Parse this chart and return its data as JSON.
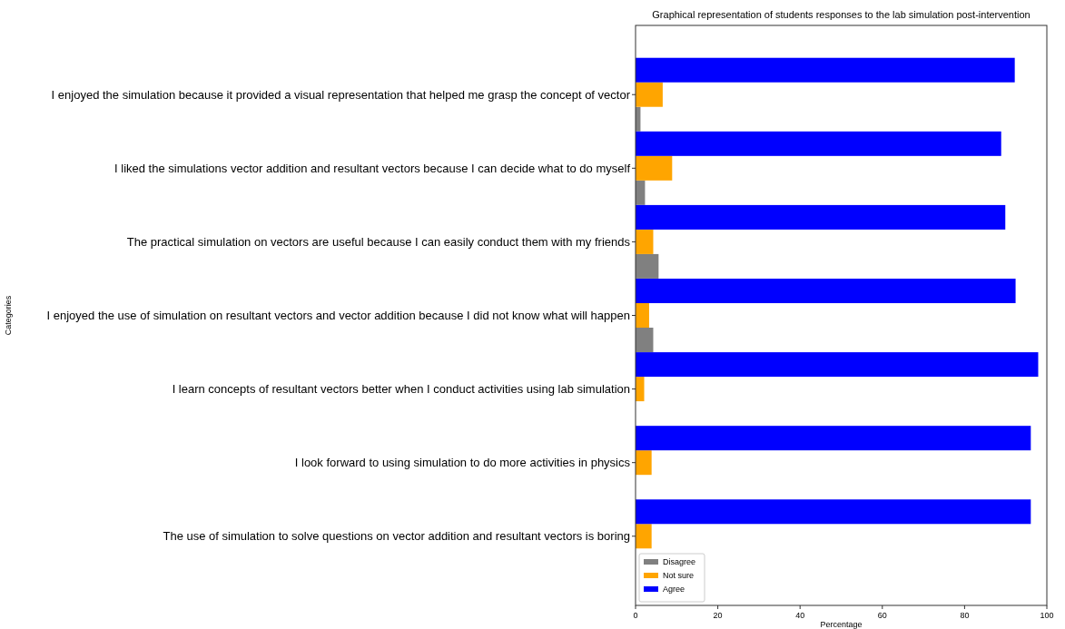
{
  "chart_data": {
    "type": "bar",
    "orientation": "horizontal",
    "title": "Graphical representation of students responses to the lab simulation post-intervention",
    "xlabel": "Percentage",
    "ylabel": "Categories",
    "categories": [
      "I enjoyed the simulation because it provided a visual representation that helped me grasp the concept of vector",
      "I liked the simulations vector addition and resultant vectors because I can decide what to do myself",
      "The practical simulation on vectors are useful because I can easily conduct them with my friends",
      "I enjoyed the use of simulation on resultant vectors and vector addition because I did not know what will happen",
      "I learn concepts of resultant vectors better when I conduct activities using lab simulation",
      "I look forward to using simulation to do more activities in physics",
      "The use of simulation to solve questions on vector addition and resultant vectors is boring"
    ],
    "series": [
      {
        "name": "Disagree",
        "color": "#808080",
        "values": [
          1.2,
          2.3,
          5.6,
          4.3,
          0,
          0,
          0
        ]
      },
      {
        "name": "Not sure",
        "color": "#ffa500",
        "values": [
          6.6,
          8.9,
          4.3,
          3.3,
          2.1,
          3.9,
          3.9
        ]
      },
      {
        "name": "Agree",
        "color": "#0000ff",
        "values": [
          92.2,
          88.9,
          89.9,
          92.4,
          97.9,
          96.1,
          96.1
        ]
      }
    ],
    "xlim": [
      0,
      100
    ],
    "xticks": [
      0,
      20,
      40,
      60,
      80,
      100
    ],
    "legend": "bottom left",
    "grid": false
  }
}
